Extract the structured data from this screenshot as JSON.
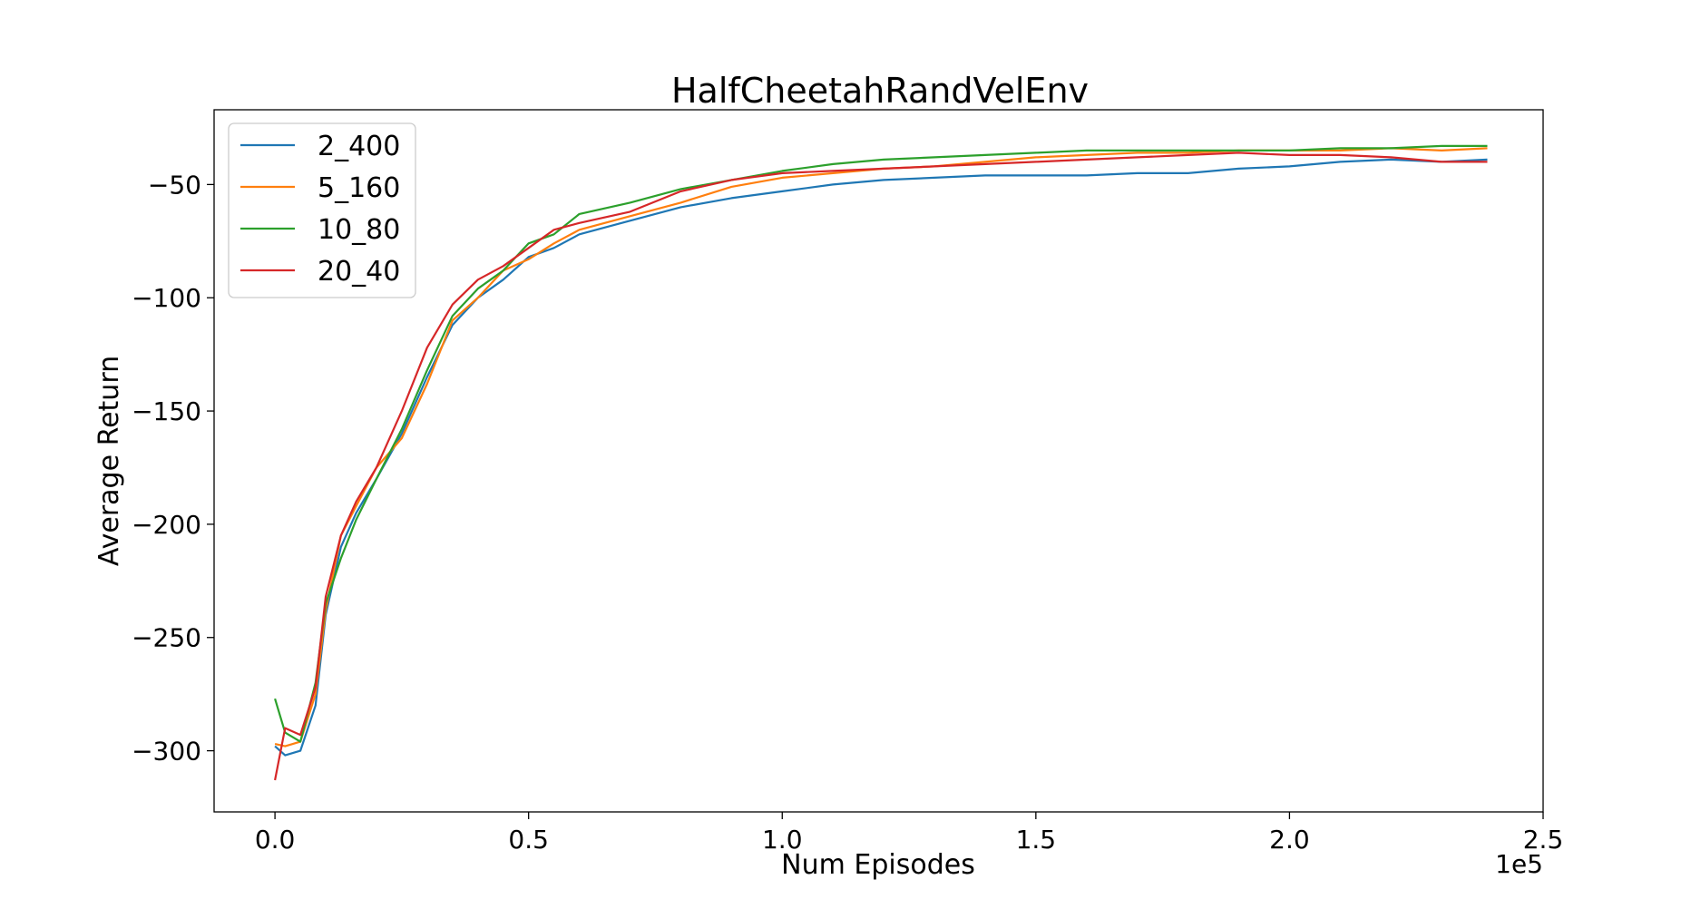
{
  "chart_data": {
    "type": "line",
    "title": "HalfCheetahRandVelEnv",
    "xlabel": "Num Episodes",
    "ylabel": "Average Return",
    "x_offset_label": "1e5",
    "xlim": [
      -0.12,
      2.5
    ],
    "ylim": [
      -327,
      -17
    ],
    "x_ticks": [
      0.0,
      0.5,
      1.0,
      1.5,
      2.0,
      2.5
    ],
    "x_tick_labels": [
      "0.0",
      "0.5",
      "1.0",
      "1.5",
      "2.0",
      "2.5"
    ],
    "y_ticks": [
      -300,
      -250,
      -200,
      -150,
      -100,
      -50
    ],
    "y_tick_labels": [
      "−300",
      "−250",
      "−200",
      "−150",
      "−100",
      "−50"
    ],
    "grid": false,
    "legend_position": "upper-left",
    "x": [
      0.0,
      0.02,
      0.05,
      0.08,
      0.1,
      0.13,
      0.16,
      0.2,
      0.25,
      0.3,
      0.35,
      0.4,
      0.45,
      0.5,
      0.55,
      0.6,
      0.7,
      0.8,
      0.9,
      1.0,
      1.1,
      1.2,
      1.3,
      1.4,
      1.5,
      1.6,
      1.7,
      1.8,
      1.9,
      2.0,
      2.1,
      2.2,
      2.3,
      2.39
    ],
    "series": [
      {
        "name": "2_400",
        "color": "#1f77b4",
        "values": [
          -298,
          -302,
          -300,
          -280,
          -240,
          -210,
          -195,
          -180,
          -160,
          -135,
          -112,
          -100,
          -92,
          -82,
          -78,
          -72,
          -66,
          -60,
          -56,
          -53,
          -50,
          -48,
          -47,
          -46,
          -46,
          -46,
          -45,
          -45,
          -43,
          -42,
          -40,
          -39,
          -40,
          -39
        ]
      },
      {
        "name": "5_160",
        "color": "#ff7f0e",
        "values": [
          -297,
          -298,
          -296,
          -275,
          -238,
          -205,
          -192,
          -175,
          -162,
          -138,
          -110,
          -100,
          -88,
          -83,
          -76,
          -70,
          -64,
          -58,
          -51,
          -47,
          -45,
          -43,
          -42,
          -40,
          -38,
          -37,
          -36,
          -36,
          -35,
          -35,
          -35,
          -34,
          -35,
          -34
        ]
      },
      {
        "name": "10_80",
        "color": "#2ca02c",
        "values": [
          -277,
          -292,
          -296,
          -270,
          -235,
          -215,
          -198,
          -180,
          -158,
          -132,
          -108,
          -96,
          -88,
          -76,
          -72,
          -63,
          -58,
          -52,
          -48,
          -44,
          -41,
          -39,
          -38,
          -37,
          -36,
          -35,
          -35,
          -35,
          -35,
          -35,
          -34,
          -34,
          -33,
          -33
        ]
      },
      {
        "name": "20_40",
        "color": "#d62728",
        "values": [
          -313,
          -290,
          -293,
          -272,
          -232,
          -205,
          -190,
          -175,
          -150,
          -122,
          -103,
          -92,
          -86,
          -78,
          -70,
          -67,
          -62,
          -53,
          -48,
          -45,
          -44,
          -43,
          -42,
          -41,
          -40,
          -39,
          -38,
          -37,
          -36,
          -37,
          -37,
          -38,
          -40,
          -40
        ]
      }
    ]
  }
}
